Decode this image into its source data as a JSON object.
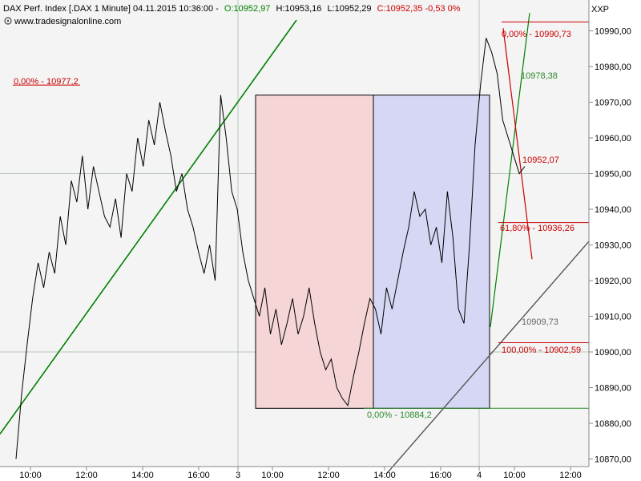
{
  "header": {
    "instrument": "DAX Perf. Index [.DAX  1 Minute] 04.11.2015 10:36:00 -",
    "open": "O:10952,97",
    "high": "H:10953,16",
    "low": "L:10952,29",
    "change": "C:10952,35 -0,53 0%",
    "website": "www.tradesignalonline.com",
    "axis_unit": "XXP"
  },
  "colors": {
    "background": "#ffffff",
    "plot_area": "#f4f4f4",
    "grid": "#b9c9b9",
    "price_line": "#000000",
    "trendline": "#008000",
    "fib_red": "#cc0000",
    "fib_green": "#2a8a2a",
    "channel": "#555555",
    "box_red": "#f5d5d5",
    "box_blue": "#d5d7f5",
    "positive": "#008000",
    "negative": "#cc0000"
  },
  "chart_data": {
    "type": "line",
    "ylim": [
      10866,
      10996
    ],
    "y_ticks": [
      10870,
      10880,
      10890,
      10900,
      10910,
      10920,
      10930,
      10940,
      10950,
      10960,
      10970,
      10980,
      10990
    ],
    "y_tick_labels": [
      "10870,00",
      "10880,00",
      "10890,00",
      "10900,00",
      "10910,00",
      "10920,00",
      "10930,00",
      "10940,00",
      "10950,00",
      "10960,00",
      "10970,00",
      "10980,00",
      "10990,00"
    ],
    "x_tick_labels": [
      "10:00",
      "12:00",
      "14:00",
      "16:00",
      "3",
      "10:00",
      "12:00",
      "14:00",
      "16:00",
      "4",
      "10:00",
      "12:00"
    ],
    "series": [
      {
        "values": [
          10870,
          10888,
          10902,
          10915,
          10925,
          10918,
          10928,
          10922,
          10938,
          10930,
          10948,
          10942,
          10955,
          10940,
          10952,
          10945,
          10938,
          10935,
          10943,
          10932,
          10950,
          10945,
          10960,
          10952,
          10965,
          10958,
          10970,
          10962,
          10955,
          10945,
          10950,
          10940,
          10935,
          10928,
          10922,
          10930,
          10920,
          10972,
          10960,
          10945,
          10940,
          10928,
          10920,
          10915,
          10910,
          10918,
          10905,
          10912,
          10902,
          10908,
          10915,
          10905,
          10910,
          10918,
          10908,
          10900,
          10895,
          10898,
          10890,
          10887,
          10885,
          10893,
          10900,
          10908,
          10915,
          10912,
          10905,
          10918,
          10912,
          10920,
          10928,
          10935,
          10945,
          10938,
          10940,
          10930,
          10935,
          10925,
          10945,
          10932,
          10912,
          10908,
          10930,
          10958,
          10975,
          10988,
          10984,
          10978,
          10965,
          10960,
          10955,
          10950,
          10952
        ]
      }
    ],
    "annotations": [
      {
        "label": "0,00% - 10977,2"
      },
      {
        "label": "0,00% - 10990,73"
      },
      {
        "label": "10978,38"
      },
      {
        "label": "10952,07"
      },
      {
        "label": "61,80% - 10936,26"
      },
      {
        "label": "10909,73"
      },
      {
        "label": "100,00% - 10902,59"
      },
      {
        "label": "0,00% - 10884,2"
      }
    ]
  }
}
